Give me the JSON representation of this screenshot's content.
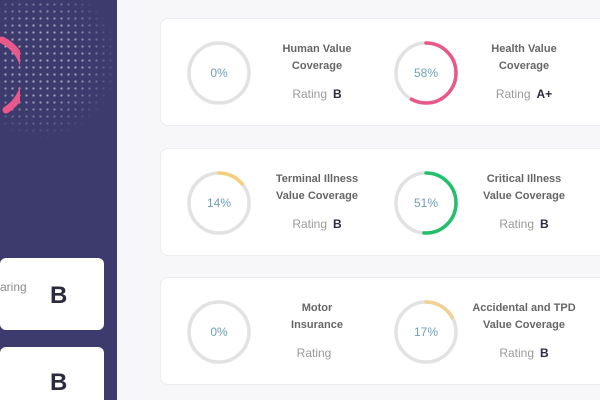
{
  "sidebar": {
    "cards": [
      {
        "label": "aring",
        "grade": "B"
      },
      {
        "label": "",
        "grade": "B"
      }
    ],
    "accent": "#e8588a"
  },
  "groups": [
    {
      "metrics": [
        {
          "value": 0,
          "label": "0%",
          "title": [
            "Human Value",
            "Coverage"
          ],
          "rating_label": "Rating",
          "rating": "B",
          "color": "#dcdcdc"
        },
        {
          "value": 58,
          "label": "58%",
          "title": [
            "Health Value",
            "Coverage"
          ],
          "rating_label": "Rating",
          "rating": "A+",
          "color": "#e8588a"
        }
      ]
    },
    {
      "metrics": [
        {
          "value": 14,
          "label": "14%",
          "title": [
            "Terminal Illness",
            "Value Coverage"
          ],
          "rating_label": "Rating",
          "rating": "B",
          "color": "#f4cf7c"
        },
        {
          "value": 51,
          "label": "51%",
          "title": [
            "Critical Illness",
            "Value Coverage"
          ],
          "rating_label": "Rating",
          "rating": "B",
          "color": "#22c06a"
        }
      ]
    },
    {
      "metrics": [
        {
          "value": 0,
          "label": "0%",
          "title": [
            "Motor",
            "Insurance"
          ],
          "rating_label": "Rating",
          "rating": "",
          "color": "#dcdcdc"
        },
        {
          "value": 17,
          "label": "17%",
          "title": [
            "Accidental and TPD",
            "Value Coverage"
          ],
          "rating_label": "Rating",
          "rating": "B",
          "color": "#f2d096"
        }
      ]
    }
  ]
}
